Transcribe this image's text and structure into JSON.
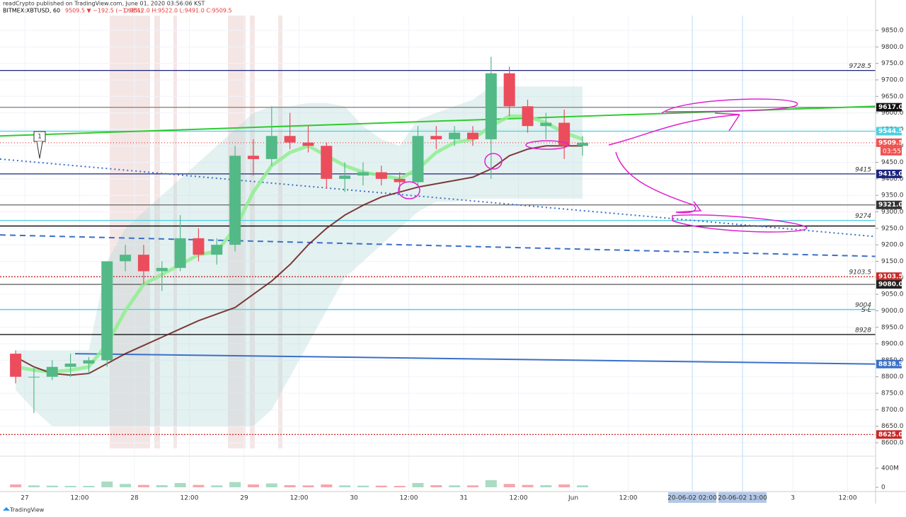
{
  "chart_data": {
    "type": "candlestick",
    "title": "readCrypto published on TradingView.com, June 01, 2020 03:56:06 KST",
    "symbol": "BITMEX:XBTUSD, 60",
    "change": "9509.5 ▼ −192.5 (−1.98%)",
    "ohlc": "O:9512.0 H:9522.0 L:9491.0 C:9509.5",
    "footer": "TradingView",
    "marker": "1",
    "up_color": "#53b987",
    "down_color": "#eb4d5c",
    "x": [
      -2,
      2,
      6,
      10,
      14,
      18,
      22,
      26,
      30,
      34,
      38,
      42,
      46,
      50,
      54,
      58,
      62,
      66,
      70,
      74,
      78,
      82,
      86,
      90,
      94,
      98,
      102,
      106,
      110,
      114,
      118,
      122
    ],
    "open": [
      8870,
      8800,
      8800,
      8830,
      8840,
      8850,
      9150,
      9170,
      9120,
      9130,
      9220,
      9170,
      9200,
      9470,
      9460,
      9530,
      9510,
      9500,
      9400,
      9410,
      9420,
      9400,
      9390,
      9530,
      9520,
      9540,
      9520,
      9720,
      9620,
      9560,
      9570,
      9500
    ],
    "high": [
      8880,
      8830,
      8850,
      8870,
      8860,
      9150,
      9200,
      9200,
      9150,
      9290,
      9250,
      9220,
      9500,
      9520,
      9620,
      9600,
      9560,
      9510,
      9450,
      9450,
      9440,
      9420,
      9560,
      9560,
      9560,
      9560,
      9770,
      9740,
      9640,
      9600,
      9610,
      9530
    ],
    "low": [
      8780,
      8690,
      8790,
      8800,
      8810,
      8830,
      9120,
      9080,
      9060,
      9120,
      9150,
      9140,
      9180,
      9410,
      9440,
      9490,
      9480,
      9370,
      9360,
      9380,
      9380,
      9360,
      9380,
      9490,
      9500,
      9500,
      9400,
      9590,
      9540,
      9520,
      9460,
      9470
    ],
    "close": [
      8800,
      8800,
      8830,
      8840,
      8850,
      9150,
      9170,
      9120,
      9130,
      9220,
      9170,
      9200,
      9470,
      9460,
      9530,
      9510,
      9500,
      9400,
      9410,
      9420,
      9400,
      9390,
      9530,
      9520,
      9540,
      9520,
      9720,
      9620,
      9560,
      9570,
      9500,
      9509.5
    ],
    "volume": [
      60,
      40,
      35,
      30,
      30,
      120,
      70,
      50,
      45,
      90,
      50,
      40,
      110,
      60,
      80,
      45,
      40,
      60,
      40,
      35,
      35,
      30,
      90,
      45,
      40,
      40,
      150,
      70,
      50,
      45,
      60,
      40
    ],
    "band": {
      "color": "#b2d8d8",
      "upper": [
        8880,
        8880,
        8880,
        8880,
        8880,
        9150,
        9250,
        9300,
        9350,
        9400,
        9450,
        9500,
        9550,
        9600,
        9620,
        9620,
        9630,
        9630,
        9620,
        9560,
        9520,
        9500,
        9580,
        9600,
        9620,
        9640,
        9680,
        9680,
        9680,
        9680,
        9680,
        9680
      ],
      "lower": [
        8760,
        8700,
        8650,
        8650,
        8650,
        8650,
        8650,
        8650,
        8650,
        8650,
        8650,
        8650,
        8650,
        8650,
        8700,
        8800,
        8900,
        9000,
        9100,
        9150,
        9200,
        9250,
        9300,
        9330,
        9330,
        9340,
        9340,
        9340,
        9340,
        9340,
        9340,
        9340
      ]
    },
    "series": [
      {
        "color": "#90ee90",
        "width": 5,
        "values": [
          8830,
          8820,
          8815,
          8820,
          8830,
          8900,
          9000,
          9080,
          9110,
          9140,
          9170,
          9180,
          9250,
          9360,
          9440,
          9480,
          9500,
          9470,
          9440,
          9420,
          9410,
          9400,
          9430,
          9480,
          9510,
          9520,
          9560,
          9590,
          9590,
          9570,
          9540,
          9520
        ]
      },
      {
        "color": "#6b1a1a",
        "width": 2,
        "values": [
          8860,
          8830,
          8810,
          8805,
          8810,
          8840,
          8870,
          8895,
          8920,
          8945,
          8970,
          8990,
          9010,
          9050,
          9090,
          9140,
          9200,
          9250,
          9290,
          9320,
          9345,
          9360,
          9375,
          9385,
          9395,
          9405,
          9430,
          9470,
          9490,
          9500,
          9500,
          9500
        ]
      }
    ],
    "xlim": [
      -5.42,
      186.1
    ],
    "ylim": [
      8570,
      9895
    ],
    "vlim": [
      0,
      450
    ],
    "xticks": [
      {
        "value": 0,
        "label": "27"
      },
      {
        "value": 12,
        "label": "12:00"
      },
      {
        "value": 24,
        "label": "28"
      },
      {
        "value": 36,
        "label": "12:00"
      },
      {
        "value": 48,
        "label": "29"
      },
      {
        "value": 60,
        "label": "12:00"
      },
      {
        "value": 72,
        "label": "30"
      },
      {
        "value": 84,
        "label": "12:00"
      },
      {
        "value": 96,
        "label": "31"
      },
      {
        "value": 108,
        "label": "12:00"
      },
      {
        "value": 120,
        "label": "Jun"
      },
      {
        "value": 132,
        "label": "12:00"
      },
      {
        "value": 168,
        "label": "3"
      },
      {
        "value": 180,
        "label": "12:00"
      }
    ],
    "xmarkers": [
      {
        "value": 146,
        "label": "20-06-02  02:00"
      },
      {
        "value": 157,
        "label": "20-06-02  13:00"
      }
    ],
    "yticks": [
      {
        "value": 8600,
        "label": "8600.0"
      },
      {
        "value": 8650,
        "label": "8650.0"
      },
      {
        "value": 8700,
        "label": "8700.0"
      },
      {
        "value": 8750,
        "label": "8750.0"
      },
      {
        "value": 8800,
        "label": "8800.0"
      },
      {
        "value": 8850,
        "label": "8850.0"
      },
      {
        "value": 8900,
        "label": "8900.0"
      },
      {
        "value": 8950,
        "label": "8950.0"
      },
      {
        "value": 9000,
        "label": "9000.0"
      },
      {
        "value": 9050,
        "label": "9050.0"
      },
      {
        "value": 9100,
        "label": "9100.0"
      },
      {
        "value": 9150,
        "label": "9150.0"
      },
      {
        "value": 9200,
        "label": "9200.0"
      },
      {
        "value": 9250,
        "label": "9250.0"
      },
      {
        "value": 9300,
        "label": "9300.0"
      },
      {
        "value": 9350,
        "label": "9350.0"
      },
      {
        "value": 9400,
        "label": "9400.0"
      },
      {
        "value": 9450,
        "label": "9450.0"
      },
      {
        "value": 9500,
        "label": "9500.0"
      },
      {
        "value": 9550,
        "label": "9550.0"
      },
      {
        "value": 9600,
        "label": "9600.0"
      },
      {
        "value": 9650,
        "label": "9650.0"
      },
      {
        "value": 9700,
        "label": "9700.0"
      },
      {
        "value": 9750,
        "label": "9750.0"
      },
      {
        "value": 9800,
        "label": "9800.0"
      },
      {
        "value": 9850,
        "label": "9850.0"
      }
    ],
    "vticks": [
      {
        "value": 400,
        "label": "400M"
      },
      0
    ],
    "levels": [
      {
        "value": 9728.5,
        "color": "#1a237e",
        "dash": "",
        "label": "9728.5"
      },
      {
        "value": 9617,
        "color": "#888888",
        "dash": "",
        "tag": "9617.0",
        "tag_color": "#111111"
      },
      {
        "value": 9544.5,
        "color": "#4dd0e1",
        "dash": "",
        "tag": "9544.5",
        "tag_color": "#4dd0e1"
      },
      {
        "value": 9509.5,
        "color": "#ef5350",
        "dash": "1 3",
        "tag": "9509.5",
        "tag_color": "#ef5350",
        "tag2": "03:55"
      },
      {
        "value": 9415,
        "color": "#1a237e",
        "dash": "",
        "label": "9415",
        "tag": "9415.0",
        "tag_color": "#1a237e"
      },
      {
        "value": 9321,
        "color": "#666666",
        "dash": "",
        "tag": "9321.0",
        "tag_color": "#333333"
      },
      {
        "value": 9274,
        "color": "#4dd0e1",
        "dash": "",
        "label": "9274"
      },
      {
        "value": 9257,
        "color": "#000000",
        "dash": ""
      },
      {
        "value": 9103.5,
        "color": "#c62828",
        "dash": "2 2",
        "label": "9103.5",
        "tag": "9103.5",
        "tag_color": "#c62828"
      },
      {
        "value": 9080,
        "color": "#555555",
        "dash": "",
        "tag": "9080.0",
        "tag_color": "#222222"
      },
      {
        "value": 9004,
        "color": "#4dd0e1",
        "dash": "",
        "label": "9004",
        "label2": "S-L"
      },
      {
        "value": 8928,
        "color": "#000000",
        "dash": "",
        "label": "8928"
      },
      {
        "value": 8625,
        "color": "#c62828",
        "dash": "2 2",
        "tag": "8625.0",
        "tag_color": "#c62828"
      }
    ],
    "trendlines": [
      {
        "color": "#2ecc2e",
        "dash": "",
        "width": 2,
        "x": [
          -5.42,
          186.1
        ],
        "y": [
          9530,
          9620
        ]
      },
      {
        "color": "#3a70c8",
        "dash": "2 4",
        "width": 2,
        "x": [
          -5.42,
          186.1
        ],
        "y": [
          9460,
          9225
        ]
      },
      {
        "color": "#3a70c8",
        "dash": "8 6",
        "width": 2,
        "x": [
          -5.42,
          186.1
        ],
        "y": [
          9230,
          9165
        ]
      },
      {
        "color": "#3a70c8",
        "dash": "",
        "width": 2,
        "x": [
          11,
          186.1
        ],
        "y": [
          8870,
          8838.5
        ],
        "tag": "8838.5"
      }
    ]
  }
}
